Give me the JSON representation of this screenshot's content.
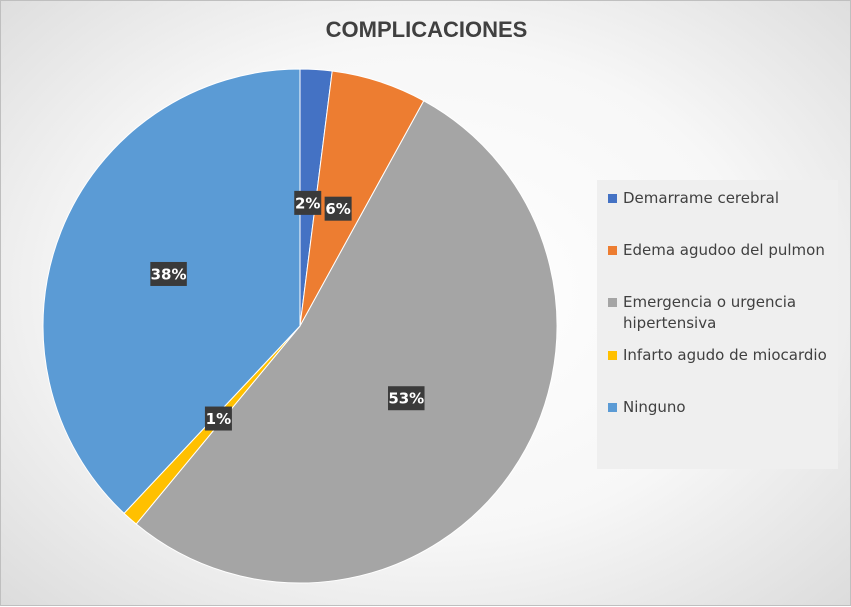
{
  "chart_data": {
    "type": "pie",
    "title": "COMPLICACIONES",
    "slices": [
      {
        "name": "Demarrame cerebral",
        "value": 2,
        "label": "2%",
        "color": "#4472c4"
      },
      {
        "name": "Edema agudoo del pulmon",
        "value": 6,
        "label": "6%",
        "color": "#ed7d31"
      },
      {
        "name": "Emergencia o urgencia hipertensiva",
        "value": 53,
        "label": "53%",
        "color": "#a5a5a5"
      },
      {
        "name": "Infarto agudo de miocardio",
        "value": 1,
        "label": "1%",
        "color": "#ffc000"
      },
      {
        "name": "Ninguno",
        "value": 38,
        "label": "38%",
        "color": "#5b9bd5"
      }
    ],
    "legend_position": "right"
  }
}
